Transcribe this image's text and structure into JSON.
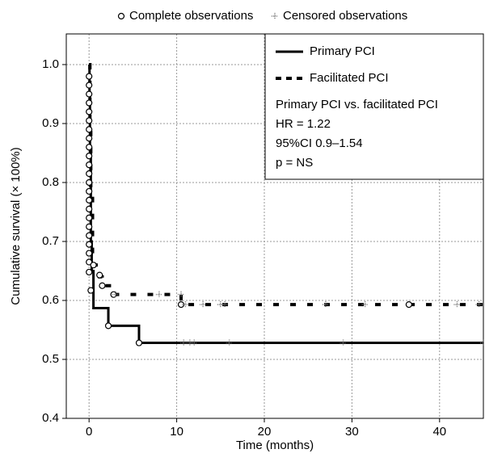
{
  "chart_data": {
    "type": "line",
    "x_label": "Time (months)",
    "y_label": "Cumulative survival (× 100%)",
    "xlim": [
      -2.6,
      45
    ],
    "ylim": [
      0.4,
      1.052
    ],
    "xticks": [
      0,
      10,
      20,
      30,
      40
    ],
    "yticks": [
      {
        "value": 1,
        "label": "1.0"
      },
      0.9,
      0.8,
      0.7,
      0.6,
      0.5,
      0.4
    ],
    "grid": true,
    "series": [
      {
        "name": "Primary PCI",
        "color": "#000000",
        "dash": false,
        "x": [
          0,
          0.05,
          0.1,
          0.2,
          0.3,
          0.5,
          2.2,
          5.7,
          45
        ],
        "y": [
          1.0,
          0.95,
          0.85,
          0.7,
          0.65,
          0.587,
          0.557,
          0.528,
          0.528
        ]
      },
      {
        "name": "Facilitated PCI",
        "color": "#000000",
        "dash": true,
        "x": [
          0,
          0.1,
          0.2,
          0.4,
          1.2,
          1.5,
          2.8,
          10.5,
          45
        ],
        "y": [
          1.0,
          0.9,
          0.78,
          0.66,
          0.64,
          0.625,
          0.61,
          0.593,
          0.593
        ]
      }
    ],
    "marker_sets": [
      {
        "name": "Complete observations",
        "symbol": "circle",
        "x": [
          0,
          0,
          0,
          0,
          0,
          0,
          0,
          0,
          0,
          0,
          0,
          0,
          0,
          0,
          0,
          0,
          0,
          0,
          0,
          0,
          0,
          0,
          0,
          0.2,
          0.5,
          1.2,
          1.5,
          2.8,
          2.2,
          5.7,
          10.5,
          36.5
        ],
        "y": [
          0.98,
          0.965,
          0.95,
          0.935,
          0.92,
          0.905,
          0.89,
          0.875,
          0.86,
          0.845,
          0.83,
          0.815,
          0.8,
          0.785,
          0.77,
          0.755,
          0.74,
          0.725,
          0.71,
          0.695,
          0.68,
          0.665,
          0.648,
          0.617,
          0.66,
          0.643,
          0.625,
          0.61,
          0.557,
          0.528,
          0.593,
          0.593
        ]
      },
      {
        "name": "Censored observations",
        "symbol": "plus",
        "x": [
          10.8,
          11.5,
          12,
          16,
          29,
          45,
          11,
          13,
          15,
          15.5,
          27,
          31.5,
          42,
          44.5,
          3,
          8,
          10.5
        ],
        "y": [
          0.528,
          0.528,
          0.528,
          0.528,
          0.528,
          0.528,
          0.593,
          0.593,
          0.593,
          0.593,
          0.593,
          0.593,
          0.593,
          0.593,
          0.61,
          0.61,
          0.61
        ]
      }
    ],
    "annotations": [
      "Primary PCI vs. facilitated PCI",
      "HR = 1.22",
      "95%CI 0.9–1.54",
      "p = NS"
    ]
  }
}
